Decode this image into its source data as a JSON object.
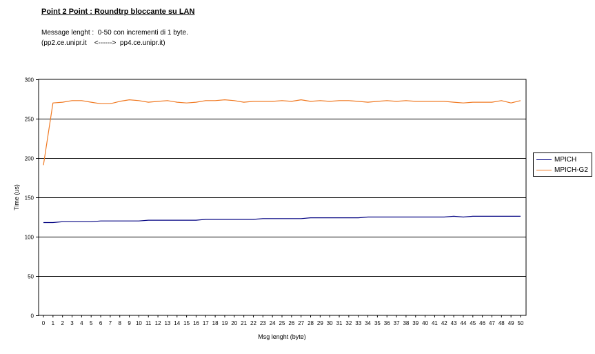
{
  "header": {
    "title": "Point 2 Point :  Roundtrp bloccante su LAN",
    "line1": "Message lenght :  0-50 con incrementi di 1 byte.",
    "line2": "(pp2.ce.unipr.it    <------>  pp4.ce.unipr.it)"
  },
  "chart_data": {
    "type": "line",
    "title": "Point 2 Point :  Roundtrp bloccante su LAN",
    "xlabel": "Msg lenght (byte)",
    "ylabel": "Time (us)",
    "ylim": [
      0,
      300
    ],
    "yticks": [
      0,
      50,
      100,
      150,
      200,
      250,
      300
    ],
    "grid": "horizontal",
    "legend_position": "right",
    "x": [
      0,
      1,
      2,
      3,
      4,
      5,
      6,
      7,
      8,
      9,
      10,
      11,
      12,
      13,
      14,
      15,
      16,
      17,
      18,
      19,
      20,
      21,
      22,
      23,
      24,
      25,
      26,
      27,
      28,
      29,
      30,
      31,
      32,
      33,
      34,
      35,
      36,
      37,
      38,
      39,
      40,
      41,
      42,
      43,
      44,
      45,
      46,
      47,
      48,
      49,
      50
    ],
    "series": [
      {
        "name": "MPICH",
        "color": "#000080",
        "values": [
          118,
          118,
          119,
          119,
          119,
          119,
          120,
          120,
          120,
          120,
          120,
          121,
          121,
          121,
          121,
          121,
          121,
          122,
          122,
          122,
          122,
          122,
          122,
          123,
          123,
          123,
          123,
          123,
          124,
          124,
          124,
          124,
          124,
          124,
          125,
          125,
          125,
          125,
          125,
          125,
          125,
          125,
          125,
          126,
          125,
          126,
          126,
          126,
          126,
          126,
          126
        ]
      },
      {
        "name": "MPICH-G2",
        "color": "#F07820",
        "values": [
          191,
          270,
          271,
          273,
          273,
          271,
          269,
          269,
          272,
          274,
          273,
          271,
          272,
          273,
          271,
          270,
          271,
          273,
          273,
          274,
          273,
          271,
          272,
          272,
          272,
          273,
          272,
          274,
          272,
          273,
          272,
          273,
          273,
          272,
          271,
          272,
          273,
          272,
          273,
          272,
          272,
          272,
          272,
          271,
          270,
          271,
          271,
          271,
          273,
          270,
          273
        ]
      }
    ]
  }
}
